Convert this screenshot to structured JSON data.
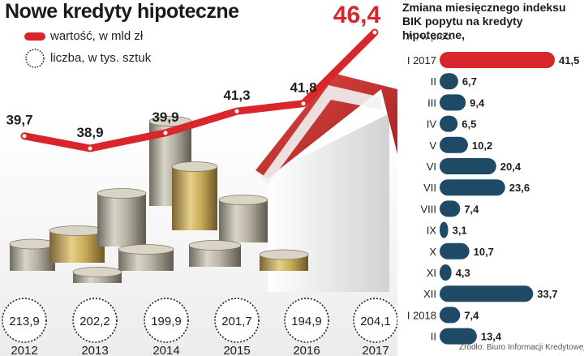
{
  "left_chart": {
    "title": "Nowe kredyty hipoteczne",
    "legend": {
      "value_label": "wartość, w mld zł",
      "count_label": "liczba, w tys. sztuk",
      "value_color": "#d8262a",
      "count_color": "#1e1e1e"
    }
  },
  "right_chart": {
    "title": "Zmiana miesięcznego indeksu BIK popytu na kredyty hipoteczne,",
    "subtitle": "r./r., w proc.",
    "source": "Źródło: Biuro Informacji Kredytowej"
  },
  "chart_data": [
    {
      "type": "line",
      "title": "Nowe kredyty hipoteczne",
      "x": [
        "2012",
        "2013",
        "2014",
        "2015",
        "2016",
        "2017"
      ],
      "series": [
        {
          "name": "wartość, w mld zł",
          "values": [
            39.7,
            38.9,
            39.9,
            41.3,
            41.8,
            46.4
          ],
          "color": "#d8262a"
        },
        {
          "name": "liczba, w tys. sztuk",
          "values": [
            213.9,
            202.2,
            199.9,
            201.7,
            194.9,
            204.1
          ],
          "color": "#1e1e1e"
        }
      ],
      "value_labels": [
        "39,7",
        "38,9",
        "39,9",
        "41,3",
        "41,8",
        "46,4"
      ],
      "count_labels": [
        "213,9",
        "202,2",
        "199,9",
        "201,7",
        "194,9",
        "204,1"
      ],
      "grid": false
    },
    {
      "type": "bar",
      "orientation": "horizontal",
      "title": "Zmiana miesięcznego indeksu BIK popytu na kredyty hipoteczne,",
      "subtitle": "r./r., w proc.",
      "categories": [
        "I 2017",
        "II",
        "III",
        "IV",
        "V",
        "VI",
        "VII",
        "VIII",
        "IX",
        "X",
        "XI",
        "XII",
        "I 2018",
        "II"
      ],
      "values": [
        41.5,
        6.7,
        9.4,
        6.5,
        10.2,
        20.4,
        23.6,
        7.4,
        3.1,
        10.7,
        4.3,
        33.7,
        7.4,
        13.4
      ],
      "labels": [
        "41,5",
        "6,7",
        "9,4",
        "6,5",
        "10,2",
        "20,4",
        "23,6",
        "7,4",
        "3,1",
        "10,7",
        "4,3",
        "33,7",
        "7,4",
        "13,4"
      ],
      "highlight_color": "#d8262a",
      "bar_color": "#1f4a66",
      "highlight_index": 0,
      "grid": false
    }
  ]
}
